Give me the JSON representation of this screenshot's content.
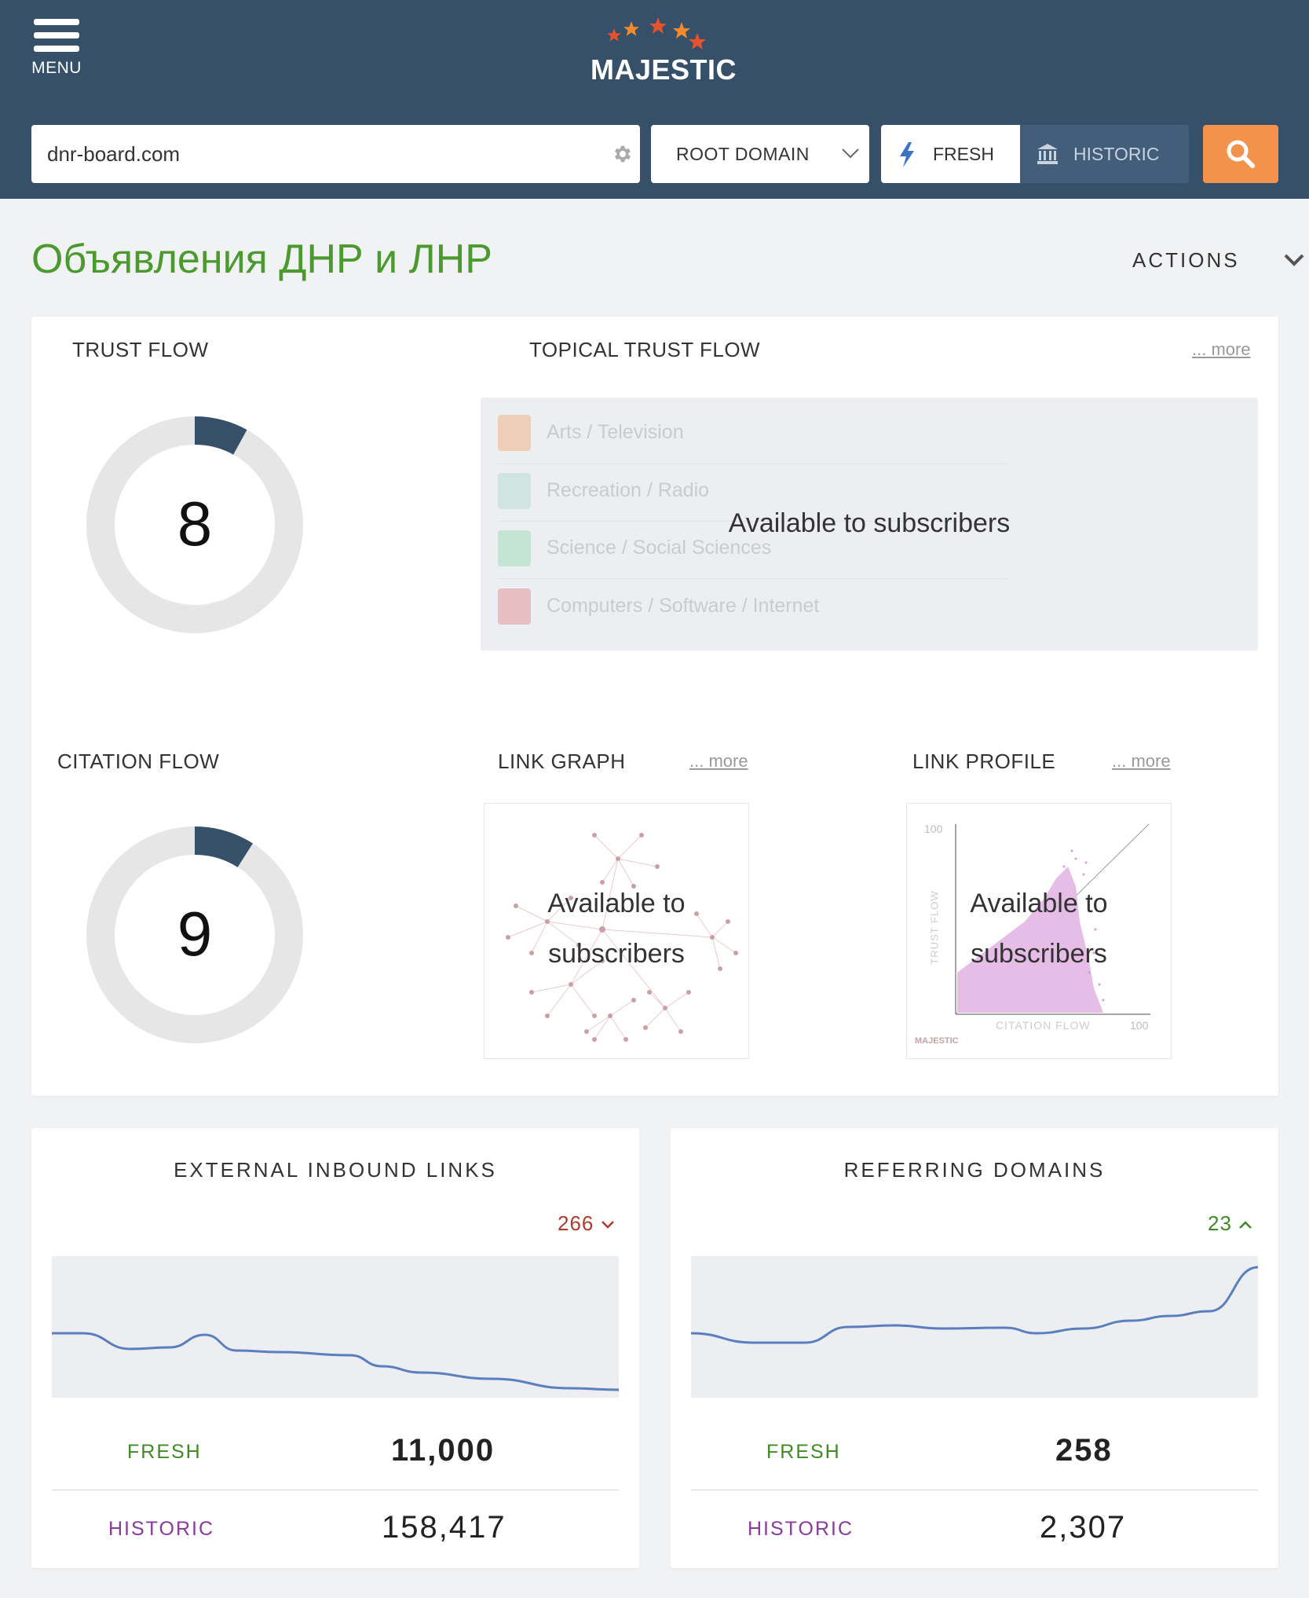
{
  "header": {
    "menu_label": "MENU",
    "logo_text": "MAJESTIC",
    "search_value": "dnr-board.com",
    "scope_label": "ROOT DOMAIN",
    "fresh_label": "FRESH",
    "historic_label": "HISTORIC",
    "accent_color": "#f3924a"
  },
  "page": {
    "title": "Объявления ДНР и ЛНР",
    "actions_label": "ACTIONS"
  },
  "trust_flow": {
    "label": "TRUST FLOW",
    "value": 8
  },
  "topical_trust_flow": {
    "label": "TOPICAL TRUST FLOW",
    "more": "... more",
    "items": [
      {
        "label": "Arts / Television",
        "color": "#f3924a"
      },
      {
        "label": "Recreation / Radio",
        "color": "#9fd3c7"
      },
      {
        "label": "Science / Social Sciences",
        "color": "#7fd39b"
      },
      {
        "label": "Computers / Software / Internet",
        "color": "#e0636b"
      }
    ],
    "overlay": "Available to subscribers"
  },
  "citation_flow": {
    "label": "CITATION FLOW",
    "value": 9
  },
  "link_graph": {
    "label": "LINK GRAPH",
    "more": "... more",
    "overlay_line1": "Available to",
    "overlay_line2": "subscribers"
  },
  "link_profile": {
    "label": "LINK PROFILE",
    "more": "... more",
    "overlay_line1": "Available to",
    "overlay_line2": "subscribers",
    "axis_y": "TRUST FLOW",
    "axis_x": "CITATION FLOW",
    "max_y": "100",
    "max_x": "100",
    "watermark": "MAJESTIC"
  },
  "external_inbound_links": {
    "title": "EXTERNAL INBOUND LINKS",
    "delta": "266",
    "delta_direction": "down",
    "fresh_label": "FRESH",
    "fresh_value": "11,000",
    "historic_label": "HISTORIC",
    "historic_value": "158,417"
  },
  "referring_domains": {
    "title": "REFERRING DOMAINS",
    "delta": "23",
    "delta_direction": "up",
    "fresh_label": "FRESH",
    "fresh_value": "258",
    "historic_label": "HISTORIC",
    "historic_value": "2,307"
  }
}
